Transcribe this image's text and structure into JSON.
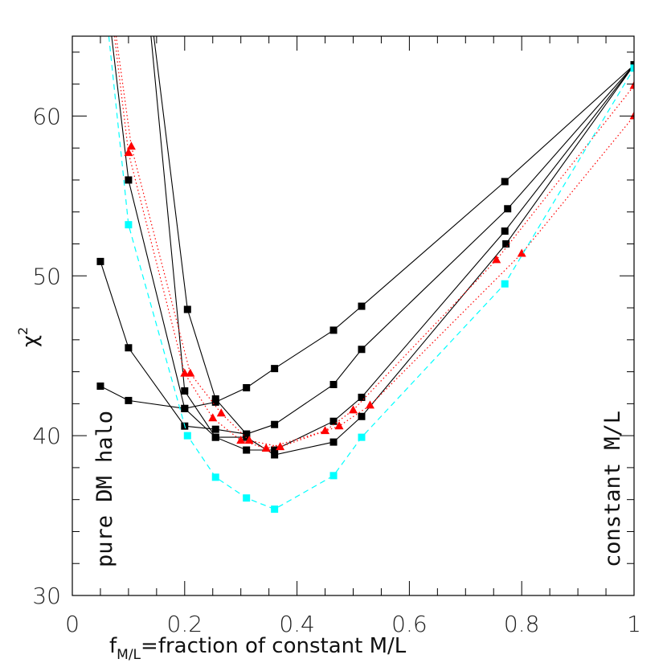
{
  "chart_data": {
    "type": "line",
    "title": "",
    "xlabel_main": "f",
    "xlabel_sub": "M/L",
    "xlabel_rest": "=fraction of constant M/L",
    "ylabel_main": "χ",
    "ylabel_sup": "2",
    "xlim": [
      0,
      1
    ],
    "ylim": [
      30,
      65
    ],
    "x_ticks": [
      0,
      0.2,
      0.4,
      0.6,
      0.8,
      1
    ],
    "x_tick_labels": [
      "0",
      "0.2",
      "0.4",
      "0.6",
      "0.8",
      "1"
    ],
    "y_ticks": [
      30,
      40,
      50,
      60
    ],
    "y_tick_labels": [
      "30",
      "40",
      "50",
      "60"
    ],
    "annotations": {
      "left": "pure DM halo",
      "right": "constant M/L"
    },
    "colors": {
      "black": "#000000",
      "red": "#ff0000",
      "cyan": "#00ffff"
    },
    "series": [
      {
        "color": "#000000",
        "dash": "solid",
        "marker": "square",
        "x": [
          0.05,
          0.1,
          0.2,
          0.255,
          0.31,
          0.36,
          0.465,
          0.515,
          0.77,
          1.0
        ],
        "y": [
          43.1,
          42.2,
          41.7,
          42.1,
          43.0,
          44.2,
          46.6,
          48.1,
          55.9,
          63.2
        ]
      },
      {
        "color": "#000000",
        "dash": "solid",
        "marker": "square",
        "x": [
          0.05,
          0.1,
          0.2,
          0.255,
          0.31,
          0.36,
          0.465,
          0.515,
          0.775,
          1.0
        ],
        "y": [
          50.9,
          45.5,
          40.6,
          40.4,
          40.1,
          40.7,
          43.2,
          45.4,
          54.2,
          63.2
        ]
      },
      {
        "color": "#000000",
        "dash": "solid",
        "marker": "square",
        "x": [
          0.14,
          0.2,
          0.255,
          0.31,
          0.36,
          0.465,
          0.515,
          0.77,
          1.0
        ],
        "y": [
          65.0,
          42.8,
          39.9,
          39.1,
          39.1,
          40.9,
          42.4,
          52.8,
          63.2
        ],
        "markers_from": 1
      },
      {
        "color": "#000000",
        "dash": "solid",
        "marker": "square",
        "x": [
          0.07,
          0.1,
          0.2,
          0.255,
          0.31,
          0.36,
          0.465,
          0.515,
          0.772,
          1.0
        ],
        "y": [
          65.0,
          56.0,
          41.7,
          39.9,
          39.9,
          38.8,
          39.6,
          41.2,
          52.0,
          63.2
        ],
        "markers_from": 1
      },
      {
        "color": "#000000",
        "dash": "solid",
        "marker": "square",
        "x": [
          0.145,
          0.205,
          0.255,
          0.31
        ],
        "y": [
          65.0,
          47.9,
          42.3,
          40.1
        ],
        "markers_from": 1
      },
      {
        "color": "#ff0000",
        "dash": "dotted",
        "marker": "triangle",
        "x": [
          0.075,
          0.1,
          0.2,
          0.25,
          0.3,
          0.345,
          0.45,
          0.5,
          0.755,
          1.0
        ],
        "y": [
          65.0,
          57.7,
          43.9,
          41.1,
          39.7,
          39.2,
          40.3,
          41.6,
          51.0,
          61.9
        ],
        "markers_from": 1
      },
      {
        "color": "#ff0000",
        "dash": "dotted",
        "marker": "triangle",
        "x": [
          0.078,
          0.105,
          0.21,
          0.265,
          0.315,
          0.37,
          0.475,
          0.53,
          0.8,
          1.0
        ],
        "y": [
          65.0,
          58.1,
          43.9,
          41.4,
          39.7,
          39.3,
          40.6,
          41.9,
          51.4,
          60.0
        ],
        "markers_from": 1
      },
      {
        "color": "#00ffff",
        "dash": "dashed",
        "marker": "square",
        "x": [
          0.065,
          0.1,
          0.205,
          0.255,
          0.31,
          0.36,
          0.465,
          0.515,
          0.77,
          1.0
        ],
        "y": [
          65.0,
          53.2,
          40.0,
          37.4,
          36.1,
          35.4,
          37.5,
          39.9,
          49.5,
          63.0
        ],
        "markers_from": 1
      }
    ]
  }
}
